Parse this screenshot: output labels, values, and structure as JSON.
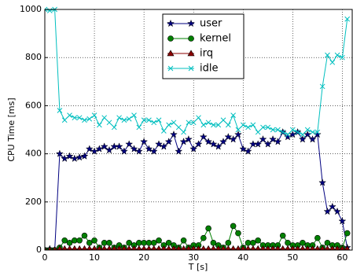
{
  "chart_data": {
    "type": "line",
    "x_label": "T [s]",
    "y_label": "CPU Time [ms]",
    "x": [
      0,
      1,
      2,
      3,
      4,
      5,
      6,
      7,
      8,
      9,
      10,
      11,
      12,
      13,
      14,
      15,
      16,
      17,
      18,
      19,
      20,
      21,
      22,
      23,
      24,
      25,
      26,
      27,
      28,
      29,
      30,
      31,
      32,
      33,
      34,
      35,
      36,
      37,
      38,
      39,
      40,
      41,
      42,
      43,
      44,
      45,
      46,
      47,
      48,
      49,
      50,
      51,
      52,
      53,
      54,
      55,
      56,
      57,
      58,
      59,
      60,
      61
    ],
    "series": [
      {
        "name": "user",
        "color": "#000080",
        "marker": "star",
        "values": [
          0,
          5,
          0,
          400,
          380,
          390,
          380,
          385,
          390,
          420,
          410,
          420,
          430,
          415,
          430,
          430,
          410,
          440,
          420,
          410,
          450,
          420,
          410,
          440,
          430,
          450,
          480,
          410,
          450,
          460,
          420,
          440,
          470,
          450,
          440,
          430,
          450,
          470,
          460,
          480,
          420,
          410,
          440,
          440,
          460,
          440,
          460,
          450,
          490,
          470,
          480,
          490,
          460,
          480,
          460,
          480,
          280,
          160,
          180,
          160,
          120,
          10
        ]
      },
      {
        "name": "kernel",
        "color": "#008000",
        "marker": "circle",
        "values": [
          0,
          0,
          0,
          10,
          40,
          30,
          40,
          40,
          60,
          30,
          40,
          10,
          30,
          30,
          10,
          20,
          10,
          30,
          20,
          30,
          30,
          30,
          30,
          40,
          20,
          30,
          20,
          10,
          40,
          10,
          20,
          20,
          50,
          90,
          30,
          20,
          10,
          30,
          100,
          70,
          10,
          30,
          30,
          40,
          20,
          20,
          20,
          20,
          60,
          30,
          20,
          20,
          30,
          20,
          20,
          50,
          10,
          30,
          20,
          20,
          10,
          70
        ]
      },
      {
        "name": "irq",
        "color": "#8b0000",
        "marker": "triangle",
        "values": [
          0,
          0,
          0,
          5,
          5,
          5,
          5,
          5,
          5,
          5,
          5,
          5,
          5,
          5,
          5,
          5,
          5,
          5,
          5,
          5,
          5,
          5,
          5,
          5,
          5,
          5,
          5,
          5,
          5,
          5,
          5,
          5,
          5,
          5,
          5,
          5,
          5,
          5,
          5,
          5,
          5,
          5,
          5,
          5,
          5,
          5,
          5,
          5,
          5,
          5,
          5,
          5,
          5,
          5,
          5,
          5,
          5,
          5,
          5,
          5,
          5,
          5
        ]
      },
      {
        "name": "idle",
        "color": "#00bfbf",
        "marker": "x",
        "values": [
          1000,
          995,
          1000,
          580,
          540,
          560,
          550,
          550,
          540,
          545,
          560,
          520,
          550,
          530,
          510,
          550,
          540,
          545,
          560,
          510,
          540,
          540,
          530,
          540,
          495,
          520,
          530,
          510,
          490,
          530,
          530,
          550,
          520,
          530,
          520,
          520,
          540,
          520,
          560,
          500,
          520,
          510,
          520,
          490,
          510,
          510,
          500,
          500,
          490,
          480,
          500,
          490,
          480,
          500,
          490,
          490,
          680,
          810,
          780,
          810,
          800,
          960
        ]
      }
    ],
    "xlim": [
      0,
      62
    ],
    "xticks": [
      0,
      10,
      20,
      30,
      40,
      50,
      60
    ],
    "ylim": [
      0,
      1000
    ],
    "yticks": [
      0,
      200,
      400,
      600,
      800,
      1000
    ],
    "grid": true,
    "legend": "upper center"
  }
}
